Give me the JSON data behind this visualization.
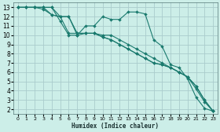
{
  "background_color": "#cceee8",
  "grid_color": "#aacccc",
  "line_color": "#1a7a6e",
  "marker_color": "#1a7a6e",
  "xlabel": "Humidex (Indice chaleur)",
  "xlim": [
    -0.5,
    23.5
  ],
  "ylim": [
    1.5,
    13.5
  ],
  "xticks": [
    0,
    1,
    2,
    3,
    4,
    5,
    6,
    7,
    8,
    9,
    10,
    11,
    12,
    13,
    14,
    15,
    16,
    17,
    18,
    19,
    20,
    21,
    22,
    23
  ],
  "yticks": [
    2,
    3,
    4,
    5,
    6,
    7,
    8,
    9,
    10,
    11,
    12,
    13
  ],
  "series_bumpy": [
    [
      0,
      13
    ],
    [
      1,
      13
    ],
    [
      2,
      13
    ],
    [
      3,
      13
    ],
    [
      4,
      13
    ],
    [
      5,
      11.5
    ],
    [
      6,
      10
    ],
    [
      7,
      10
    ],
    [
      8,
      11
    ],
    [
      9,
      11
    ],
    [
      10,
      12
    ],
    [
      11,
      11.7
    ],
    [
      12,
      11.7
    ],
    [
      13,
      12.5
    ],
    [
      14,
      12.5
    ],
    [
      15,
      12.3
    ],
    [
      16,
      9.5
    ],
    [
      17,
      8.8
    ],
    [
      18,
      6.8
    ],
    [
      19,
      6.5
    ],
    [
      20,
      5.3
    ],
    [
      21,
      3.3
    ],
    [
      22,
      2.1
    ],
    [
      23,
      1.8
    ]
  ],
  "series_linear1": [
    [
      0,
      13
    ],
    [
      1,
      13
    ],
    [
      2,
      13
    ],
    [
      3,
      13
    ],
    [
      4,
      13
    ],
    [
      5,
      12
    ],
    [
      6,
      12
    ],
    [
      7,
      10
    ],
    [
      8,
      10.2
    ],
    [
      9,
      10.2
    ],
    [
      10,
      10
    ],
    [
      11,
      10
    ],
    [
      12,
      9.5
    ],
    [
      13,
      9
    ],
    [
      14,
      8.5
    ],
    [
      15,
      8
    ],
    [
      16,
      7.5
    ],
    [
      17,
      7
    ],
    [
      18,
      6.5
    ],
    [
      19,
      6
    ],
    [
      20,
      5.5
    ],
    [
      21,
      4.5
    ],
    [
      22,
      3
    ],
    [
      23,
      1.8
    ]
  ],
  "series_linear2": [
    [
      0,
      13
    ],
    [
      1,
      13
    ],
    [
      2,
      13
    ],
    [
      3,
      13
    ],
    [
      4,
      12.2
    ],
    [
      5,
      12
    ],
    [
      6,
      12
    ],
    [
      7,
      10.2
    ],
    [
      8,
      10.2
    ],
    [
      9,
      10.2
    ],
    [
      10,
      9.8
    ],
    [
      11,
      9.5
    ],
    [
      12,
      9
    ],
    [
      13,
      8.5
    ],
    [
      14,
      8
    ],
    [
      15,
      7.5
    ],
    [
      16,
      7
    ],
    [
      17,
      6.8
    ],
    [
      18,
      6.5
    ],
    [
      19,
      6
    ],
    [
      20,
      5.5
    ],
    [
      21,
      4.5
    ],
    [
      22,
      3
    ],
    [
      23,
      1.8
    ]
  ],
  "series_linear3": [
    [
      0,
      13
    ],
    [
      1,
      13
    ],
    [
      2,
      13
    ],
    [
      3,
      12.8
    ],
    [
      4,
      12.2
    ],
    [
      5,
      12
    ],
    [
      6,
      10.2
    ],
    [
      7,
      10.2
    ],
    [
      8,
      10.2
    ],
    [
      9,
      10.2
    ],
    [
      10,
      9.8
    ],
    [
      11,
      9.5
    ],
    [
      12,
      9
    ],
    [
      13,
      8.5
    ],
    [
      14,
      8
    ],
    [
      15,
      7.5
    ],
    [
      16,
      7
    ],
    [
      17,
      6.8
    ],
    [
      18,
      6.5
    ],
    [
      19,
      6
    ],
    [
      20,
      5.5
    ],
    [
      21,
      4.2
    ],
    [
      22,
      2.8
    ],
    [
      23,
      1.8
    ]
  ]
}
